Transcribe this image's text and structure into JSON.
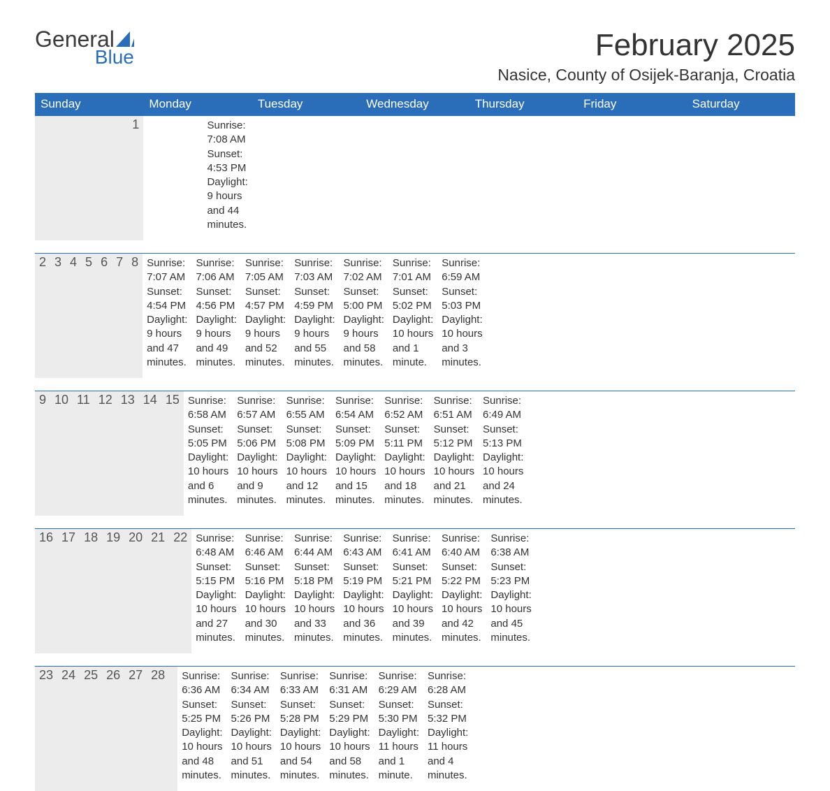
{
  "logo": {
    "word1": "General",
    "word2": "Blue",
    "word1_color": "#3a3a3a",
    "word2_color": "#2a6db8",
    "sail_color": "#2a6db8"
  },
  "title": "February 2025",
  "location": "Nasice, County of Osijek-Baranja, Croatia",
  "colors": {
    "header_bg": "#2a6db8",
    "header_text": "#ffffff",
    "daynum_bg": "#ececec",
    "week_border": "#2a6db8",
    "body_text": "#333333",
    "daynum_text": "#555555",
    "background": "#ffffff"
  },
  "fonts": {
    "title_size_pt": 33,
    "location_size_pt": 17,
    "weekday_size_pt": 13,
    "daynum_size_pt": 14,
    "body_size_pt": 11
  },
  "weekdays": [
    "Sunday",
    "Monday",
    "Tuesday",
    "Wednesday",
    "Thursday",
    "Friday",
    "Saturday"
  ],
  "weeks": [
    [
      null,
      null,
      null,
      null,
      null,
      null,
      {
        "day": "1",
        "sunrise": "Sunrise: 7:08 AM",
        "sunset": "Sunset: 4:53 PM",
        "daylight": "Daylight: 9 hours and 44 minutes."
      }
    ],
    [
      {
        "day": "2",
        "sunrise": "Sunrise: 7:07 AM",
        "sunset": "Sunset: 4:54 PM",
        "daylight": "Daylight: 9 hours and 47 minutes."
      },
      {
        "day": "3",
        "sunrise": "Sunrise: 7:06 AM",
        "sunset": "Sunset: 4:56 PM",
        "daylight": "Daylight: 9 hours and 49 minutes."
      },
      {
        "day": "4",
        "sunrise": "Sunrise: 7:05 AM",
        "sunset": "Sunset: 4:57 PM",
        "daylight": "Daylight: 9 hours and 52 minutes."
      },
      {
        "day": "5",
        "sunrise": "Sunrise: 7:03 AM",
        "sunset": "Sunset: 4:59 PM",
        "daylight": "Daylight: 9 hours and 55 minutes."
      },
      {
        "day": "6",
        "sunrise": "Sunrise: 7:02 AM",
        "sunset": "Sunset: 5:00 PM",
        "daylight": "Daylight: 9 hours and 58 minutes."
      },
      {
        "day": "7",
        "sunrise": "Sunrise: 7:01 AM",
        "sunset": "Sunset: 5:02 PM",
        "daylight": "Daylight: 10 hours and 1 minute."
      },
      {
        "day": "8",
        "sunrise": "Sunrise: 6:59 AM",
        "sunset": "Sunset: 5:03 PM",
        "daylight": "Daylight: 10 hours and 3 minutes."
      }
    ],
    [
      {
        "day": "9",
        "sunrise": "Sunrise: 6:58 AM",
        "sunset": "Sunset: 5:05 PM",
        "daylight": "Daylight: 10 hours and 6 minutes."
      },
      {
        "day": "10",
        "sunrise": "Sunrise: 6:57 AM",
        "sunset": "Sunset: 5:06 PM",
        "daylight": "Daylight: 10 hours and 9 minutes."
      },
      {
        "day": "11",
        "sunrise": "Sunrise: 6:55 AM",
        "sunset": "Sunset: 5:08 PM",
        "daylight": "Daylight: 10 hours and 12 minutes."
      },
      {
        "day": "12",
        "sunrise": "Sunrise: 6:54 AM",
        "sunset": "Sunset: 5:09 PM",
        "daylight": "Daylight: 10 hours and 15 minutes."
      },
      {
        "day": "13",
        "sunrise": "Sunrise: 6:52 AM",
        "sunset": "Sunset: 5:11 PM",
        "daylight": "Daylight: 10 hours and 18 minutes."
      },
      {
        "day": "14",
        "sunrise": "Sunrise: 6:51 AM",
        "sunset": "Sunset: 5:12 PM",
        "daylight": "Daylight: 10 hours and 21 minutes."
      },
      {
        "day": "15",
        "sunrise": "Sunrise: 6:49 AM",
        "sunset": "Sunset: 5:13 PM",
        "daylight": "Daylight: 10 hours and 24 minutes."
      }
    ],
    [
      {
        "day": "16",
        "sunrise": "Sunrise: 6:48 AM",
        "sunset": "Sunset: 5:15 PM",
        "daylight": "Daylight: 10 hours and 27 minutes."
      },
      {
        "day": "17",
        "sunrise": "Sunrise: 6:46 AM",
        "sunset": "Sunset: 5:16 PM",
        "daylight": "Daylight: 10 hours and 30 minutes."
      },
      {
        "day": "18",
        "sunrise": "Sunrise: 6:44 AM",
        "sunset": "Sunset: 5:18 PM",
        "daylight": "Daylight: 10 hours and 33 minutes."
      },
      {
        "day": "19",
        "sunrise": "Sunrise: 6:43 AM",
        "sunset": "Sunset: 5:19 PM",
        "daylight": "Daylight: 10 hours and 36 minutes."
      },
      {
        "day": "20",
        "sunrise": "Sunrise: 6:41 AM",
        "sunset": "Sunset: 5:21 PM",
        "daylight": "Daylight: 10 hours and 39 minutes."
      },
      {
        "day": "21",
        "sunrise": "Sunrise: 6:40 AM",
        "sunset": "Sunset: 5:22 PM",
        "daylight": "Daylight: 10 hours and 42 minutes."
      },
      {
        "day": "22",
        "sunrise": "Sunrise: 6:38 AM",
        "sunset": "Sunset: 5:23 PM",
        "daylight": "Daylight: 10 hours and 45 minutes."
      }
    ],
    [
      {
        "day": "23",
        "sunrise": "Sunrise: 6:36 AM",
        "sunset": "Sunset: 5:25 PM",
        "daylight": "Daylight: 10 hours and 48 minutes."
      },
      {
        "day": "24",
        "sunrise": "Sunrise: 6:34 AM",
        "sunset": "Sunset: 5:26 PM",
        "daylight": "Daylight: 10 hours and 51 minutes."
      },
      {
        "day": "25",
        "sunrise": "Sunrise: 6:33 AM",
        "sunset": "Sunset: 5:28 PM",
        "daylight": "Daylight: 10 hours and 54 minutes."
      },
      {
        "day": "26",
        "sunrise": "Sunrise: 6:31 AM",
        "sunset": "Sunset: 5:29 PM",
        "daylight": "Daylight: 10 hours and 58 minutes."
      },
      {
        "day": "27",
        "sunrise": "Sunrise: 6:29 AM",
        "sunset": "Sunset: 5:30 PM",
        "daylight": "Daylight: 11 hours and 1 minute."
      },
      {
        "day": "28",
        "sunrise": "Sunrise: 6:28 AM",
        "sunset": "Sunset: 5:32 PM",
        "daylight": "Daylight: 11 hours and 4 minutes."
      },
      null
    ]
  ]
}
